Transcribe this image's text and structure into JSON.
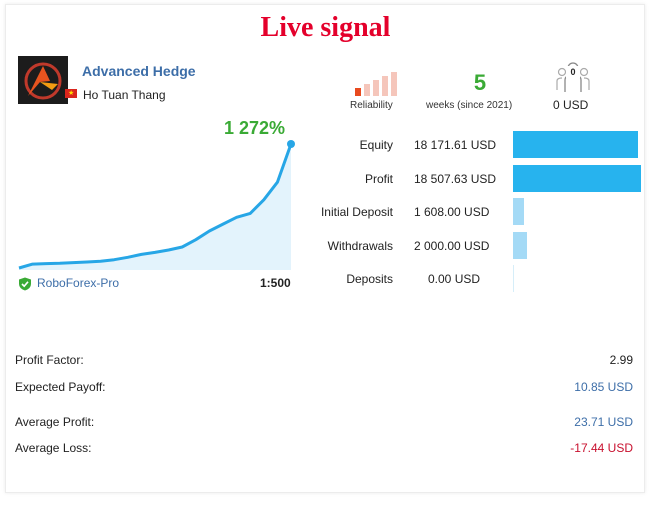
{
  "banner": {
    "title": "Live signal"
  },
  "signal": {
    "name": "Advanced Hedge",
    "author": "Ho Tuan Thang",
    "flag_icon": "vietnam-flag",
    "growth": "1 272%",
    "broker": "RoboForex-Pro",
    "leverage": "1:500"
  },
  "reliability": {
    "label": "Reliability",
    "level": 1,
    "max": 5,
    "active_color": "#e84a1f",
    "inactive_color": "#f5c6bb"
  },
  "weeks": {
    "value": "5",
    "label": "weeks (since 2021)"
  },
  "subscribers": {
    "count": "0",
    "price": "0 USD"
  },
  "stats": [
    {
      "label": "Equity",
      "value": "18 171.61 USD",
      "fraction": 0.98,
      "color": "#27b3ee"
    },
    {
      "label": "Profit",
      "value": "18 507.63 USD",
      "fraction": 1.0,
      "color": "#27b3ee"
    },
    {
      "label": "Initial Deposit",
      "value": "1 608.00 USD",
      "fraction": 0.087,
      "color": "#a4daf6"
    },
    {
      "label": "Withdrawals",
      "value": "2 000.00 USD",
      "fraction": 0.108,
      "color": "#a4daf6"
    },
    {
      "label": "Deposits",
      "value": "0.00 USD",
      "fraction": 0.0,
      "color": "#a4daf6"
    }
  ],
  "metrics": [
    {
      "label": "Profit Factor:",
      "value": "2.99",
      "color": "#222222"
    },
    {
      "label": "Expected Payoff:",
      "value": "10.85 USD",
      "color": "#3d6ea8"
    },
    {
      "label": "Average Profit:",
      "value": "23.71 USD",
      "color": "#3d6ea8"
    },
    {
      "label": "Average Loss:",
      "value": "-17.44 USD",
      "color": "#c8102e"
    }
  ],
  "chart_data": {
    "type": "area",
    "x": [
      0,
      1,
      2,
      3,
      4,
      5,
      6,
      7,
      8,
      9,
      10,
      11,
      12,
      13,
      14,
      15,
      16,
      17,
      18,
      19,
      20
    ],
    "values": [
      0,
      40,
      45,
      48,
      55,
      62,
      70,
      85,
      110,
      140,
      160,
      185,
      215,
      290,
      380,
      450,
      520,
      560,
      700,
      880,
      1272
    ],
    "ylabel": "",
    "xlabel": "",
    "title": "",
    "line_color": "#27a6e6",
    "fill_color": "#e3f3fc"
  }
}
